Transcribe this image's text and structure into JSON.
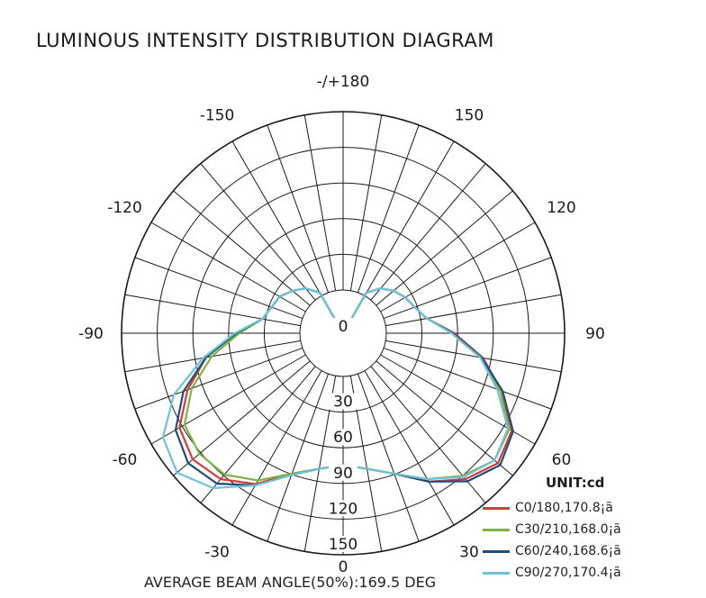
{
  "title": "LUMINOUS INTENSITY DISTRIBUTION DIAGRAM",
  "footer": "AVERAGE BEAM ANGLE(50%):169.5 DEG",
  "chart_data": {
    "type": "polar",
    "unit_label": "UNIT:cd",
    "angle_labels": [
      {
        "angle": 180,
        "text": "-/+180"
      },
      {
        "angle": -150,
        "text": "-150"
      },
      {
        "angle": 150,
        "text": "150"
      },
      {
        "angle": -120,
        "text": "-120"
      },
      {
        "angle": 120,
        "text": "120"
      },
      {
        "angle": -90,
        "text": "-90"
      },
      {
        "angle": 90,
        "text": "90"
      },
      {
        "angle": -60,
        "text": "-60"
      },
      {
        "angle": 60,
        "text": "60"
      },
      {
        "angle": -30,
        "text": "-30"
      },
      {
        "angle": 30,
        "text": "30"
      }
    ],
    "radial_labels": [
      "0",
      "30",
      "60",
      "90",
      "120",
      "150"
    ],
    "bottom_label": "0",
    "radial_max": 150,
    "series": [
      {
        "name": "C0/180,170.8¡ã",
        "color": "#d83a3a",
        "angles": [
          -170,
          -160,
          -150,
          -140,
          -130,
          -120,
          -110,
          -100,
          -90,
          -80,
          -70,
          -60,
          -50,
          -40,
          -30,
          -20,
          -10,
          0,
          10,
          20,
          30,
          40,
          50,
          60,
          70,
          80,
          90,
          100,
          110,
          120,
          130,
          140,
          150,
          160,
          170
        ],
        "values": [
          0,
          0,
          32,
          40,
          45,
          50,
          52,
          56,
          73,
          95,
          113,
          129,
          134,
          130,
          119,
          102,
          94,
          90,
          94,
          102,
          117,
          130,
          138,
          133,
          115,
          97,
          76,
          58,
          52,
          49,
          45,
          40,
          32,
          0,
          0
        ]
      },
      {
        "name": "C30/210,168.0¡ã",
        "color": "#7cb342",
        "angles": [
          -170,
          -160,
          -150,
          -140,
          -130,
          -120,
          -110,
          -100,
          -90,
          -80,
          -70,
          -60,
          -50,
          -40,
          -30,
          -20,
          -10,
          0,
          10,
          20,
          30,
          40,
          50,
          60,
          70,
          80,
          90,
          100,
          110,
          120,
          130,
          140,
          150,
          160,
          170
        ],
        "values": [
          0,
          0,
          32,
          40,
          45,
          50,
          52,
          56,
          71,
          91,
          110,
          125,
          128,
          126,
          116,
          102,
          94,
          90,
          94,
          102,
          115,
          127,
          135,
          131,
          114,
          96,
          75,
          58,
          52,
          49,
          45,
          40,
          32,
          0,
          0
        ]
      },
      {
        "name": "C60/240,168.6¡ã",
        "color": "#1f4e79",
        "angles": [
          -170,
          -160,
          -150,
          -140,
          -130,
          -120,
          -110,
          -100,
          -90,
          -80,
          -70,
          -60,
          -50,
          -40,
          -30,
          -20,
          -10,
          0,
          10,
          20,
          30,
          40,
          50,
          60,
          70,
          80,
          90,
          100,
          110,
          120,
          130,
          140,
          150,
          160,
          170
        ],
        "values": [
          0,
          0,
          32,
          40,
          45,
          50,
          52,
          56,
          73,
          95,
          116,
          132,
          138,
          134,
          120,
          103,
          94,
          90,
          94,
          102,
          117,
          132,
          140,
          134,
          116,
          96,
          75,
          58,
          52,
          49,
          45,
          40,
          32,
          0,
          0
        ]
      },
      {
        "name": "C90/270,170.4¡ã",
        "color": "#6ec3d6",
        "angles": [
          -170,
          -160,
          -150,
          -140,
          -130,
          -120,
          -110,
          -100,
          -90,
          -80,
          -70,
          -60,
          -50,
          -40,
          -30,
          -20,
          -10,
          0,
          10,
          20,
          30,
          40,
          50,
          60,
          70,
          80,
          90,
          100,
          110,
          120,
          130,
          140,
          150,
          160,
          170
        ],
        "values": [
          0,
          0,
          32,
          40,
          45,
          50,
          52,
          56,
          74,
          97,
          123,
          142,
          148,
          138,
          120,
          103,
          94,
          90,
          94,
          102,
          115,
          128,
          135,
          130,
          112,
          95,
          74,
          58,
          52,
          49,
          45,
          40,
          32,
          0,
          0
        ]
      }
    ]
  }
}
